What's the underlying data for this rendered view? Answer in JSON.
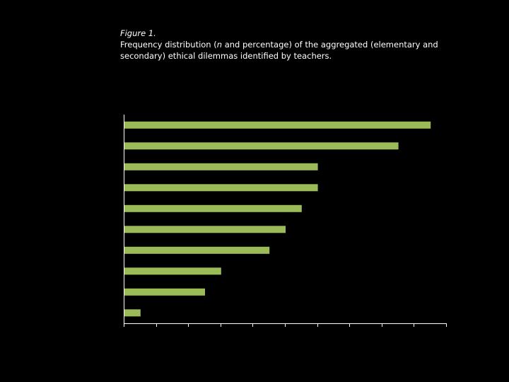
{
  "caption": {
    "figure_label": "Figure 1.",
    "title_before": "Frequency distribution (",
    "title_italic": "n",
    "title_after": " and percentage) of the aggregated (elementary and secondary) ethical dilemmas identified by teachers."
  },
  "colors": {
    "background": "#000000",
    "bar": "#9bbb59",
    "axis": "#ffffff",
    "text": "#ffffff"
  },
  "chart_data": {
    "type": "bar",
    "orientation": "horizontal",
    "title": "Frequency distribution (n and percentage) of the aggregated (elementary and secondary) ethical dilemmas identified by teachers.",
    "categories": [
      "",
      "",
      "",
      "",
      "",
      "",
      "",
      "",
      "",
      ""
    ],
    "values": [
      19,
      17,
      12,
      12,
      11,
      10,
      9,
      6,
      5,
      1
    ],
    "xlim": [
      0,
      20
    ],
    "x_tick_count": 10,
    "xlabel": "",
    "ylabel": "",
    "grid": false,
    "legend": "none"
  }
}
